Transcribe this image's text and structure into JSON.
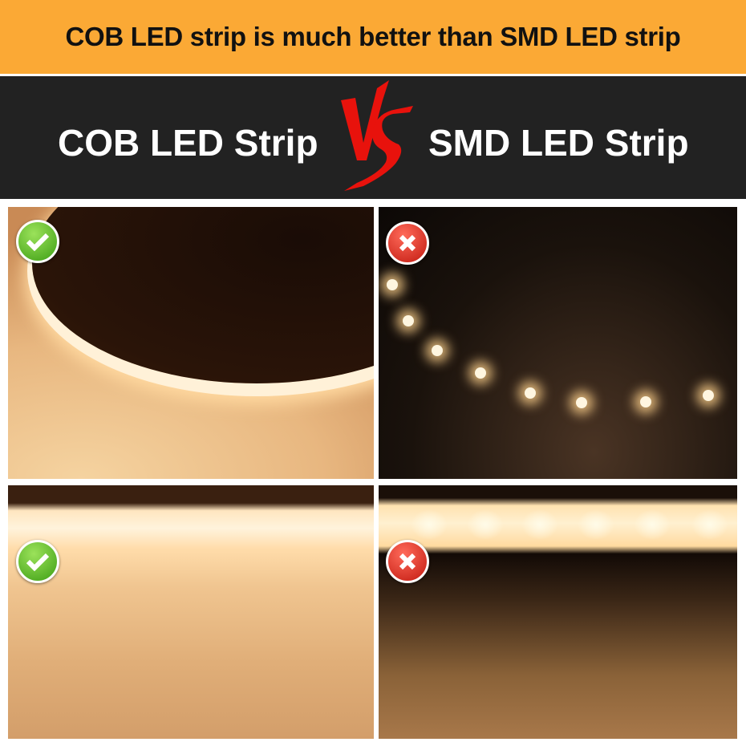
{
  "banner": {
    "headline": "COB LED strip is much better than SMD LED strip",
    "color": "#fba935"
  },
  "comparison": {
    "left_label": "COB LED Strip",
    "vs_label": "VS",
    "right_label": "SMD LED Strip",
    "vs_color": "#e8120c"
  },
  "photos": [
    {
      "subject": "COB LED Strip",
      "verdict": "check-icon"
    },
    {
      "subject": "SMD LED Strip",
      "verdict": "cross-icon"
    },
    {
      "subject": "COB LED Strip",
      "verdict": "check-icon"
    },
    {
      "subject": "SMD LED Strip",
      "verdict": "cross-icon"
    }
  ]
}
